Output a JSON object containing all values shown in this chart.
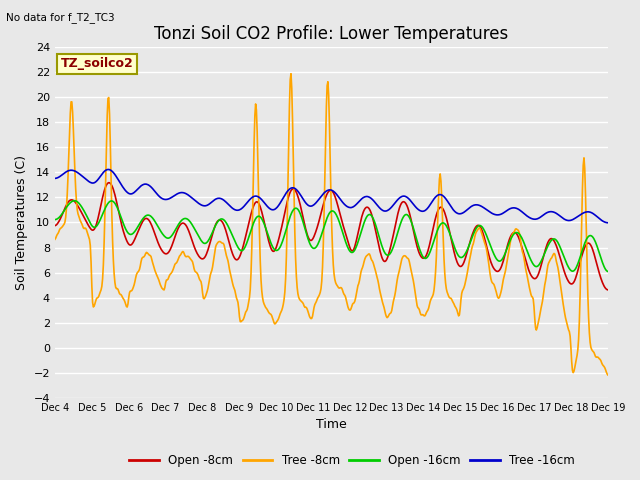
{
  "title": "Tonzi Soil CO2 Profile: Lower Temperatures",
  "subtitle": "No data for f_T2_TC3",
  "ylabel": "Soil Temperatures (C)",
  "xlabel": "Time",
  "legend_label": "TZ_soilco2",
  "ylim": [
    -4,
    24
  ],
  "yticks": [
    -4,
    -2,
    0,
    2,
    4,
    6,
    8,
    10,
    12,
    14,
    16,
    18,
    20,
    22,
    24
  ],
  "xtick_labels": [
    "Dec 4",
    "Dec 5",
    "Dec 6",
    "Dec 7",
    "Dec 8",
    "Dec 9",
    "Dec 10",
    "Dec 11",
    "Dec 12",
    "Dec 13",
    "Dec 14",
    "Dec 15",
    "Dec 16",
    "Dec 17",
    "Dec 18",
    "Dec 19"
  ],
  "series_colors": {
    "open_8cm": "#cc0000",
    "tree_8cm": "#ffa500",
    "open_16cm": "#00cc00",
    "tree_16cm": "#0000cc"
  },
  "series_labels": [
    "Open -8cm",
    "Tree -8cm",
    "Open -16cm",
    "Tree -16cm"
  ],
  "background_color": "#e8e8e8",
  "grid_color": "#ffffff",
  "title_fontsize": 12,
  "axis_fontsize": 9,
  "tick_fontsize": 8,
  "tree8_peaks": [
    20.5,
    21.2,
    7.5,
    7.5,
    7.5,
    21.0,
    23.3,
    22.7,
    7.5,
    7.5,
    14.5,
    9.5,
    9.5,
    7.5,
    7.5,
    16.5,
    0.0,
    -0.5
  ],
  "tree8_troughs": [
    8.5,
    3.0,
    4.5,
    5.5,
    3.8,
    1.7,
    2.0,
    3.2,
    3.0,
    2.2,
    2.5,
    4.5,
    3.8,
    1.2,
    4.2,
    -2.2,
    -1.0,
    -2.5
  ],
  "open8_mid": [
    10.8,
    11.0,
    9.0,
    8.5,
    8.5,
    9.5,
    10.5,
    10.8,
    9.0,
    9.5,
    9.0,
    8.0,
    7.5,
    7.0,
    6.5,
    6.0,
    5.0,
    4.2
  ],
  "open8_amp": [
    1.2,
    2.5,
    1.5,
    1.5,
    2.0,
    2.5,
    2.5,
    2.0,
    2.5,
    2.5,
    2.5,
    2.0,
    2.0,
    2.0,
    2.0,
    2.0,
    1.5,
    1.0
  ],
  "open16_mid": [
    11.0,
    10.5,
    9.8,
    9.5,
    9.2,
    9.0,
    9.5,
    9.5,
    9.0,
    9.0,
    8.5,
    8.5,
    8.0,
    7.5,
    7.5,
    7.0,
    6.5,
    6.0
  ],
  "open16_amp": [
    0.9,
    1.5,
    1.0,
    1.0,
    1.3,
    1.8,
    2.0,
    1.8,
    2.0,
    2.0,
    1.8,
    1.5,
    1.5,
    1.5,
    1.8,
    1.8,
    1.5,
    1.0
  ],
  "tree16_mid": [
    13.8,
    13.5,
    12.5,
    12.0,
    11.5,
    11.5,
    12.0,
    12.0,
    11.5,
    11.5,
    11.5,
    11.0,
    10.8,
    10.5,
    10.5,
    10.2,
    10.0,
    9.5
  ],
  "tree16_amp": [
    0.5,
    1.0,
    0.8,
    0.5,
    0.6,
    0.8,
    1.0,
    0.8,
    0.8,
    0.8,
    1.0,
    0.5,
    0.5,
    0.5,
    0.5,
    0.5,
    0.5,
    0.5
  ]
}
